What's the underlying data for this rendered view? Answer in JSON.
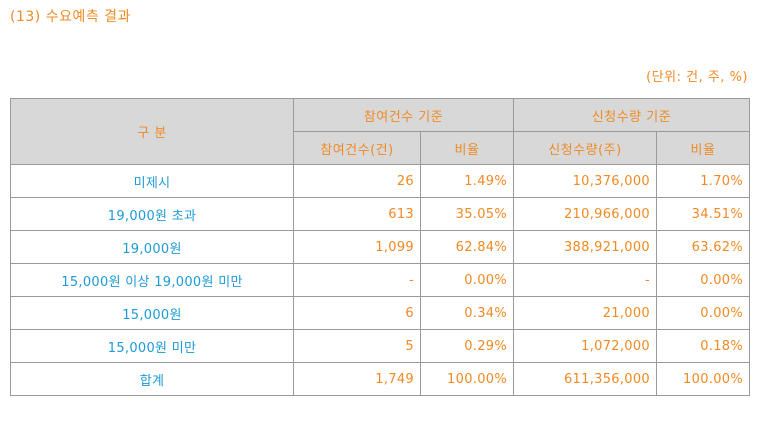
{
  "heading": "(13) 수요예측 결과",
  "unit_note": "(단위: 건, 주, %)",
  "table": {
    "header": {
      "category": "구 분",
      "group_count": "참여건수 기준",
      "group_quantity": "신청수량 기준",
      "count_col": "참여건수(건)",
      "count_ratio": "비율",
      "quantity_col": "신청수량(주)",
      "quantity_ratio": "비율"
    },
    "rows": [
      {
        "label": "미제시",
        "count": "26",
        "count_ratio": "1.49%",
        "quantity": "10,376,000",
        "quantity_ratio": "1.70%"
      },
      {
        "label": "19,000원 초과",
        "count": "613",
        "count_ratio": "35.05%",
        "quantity": "210,966,000",
        "quantity_ratio": "34.51%"
      },
      {
        "label": "19,000원",
        "count": "1,099",
        "count_ratio": "62.84%",
        "quantity": "388,921,000",
        "quantity_ratio": "63.62%"
      },
      {
        "label": "15,000원 이상 19,000원 미만",
        "count": "-",
        "count_ratio": "0.00%",
        "quantity": "-",
        "quantity_ratio": "0.00%"
      },
      {
        "label": "15,000원",
        "count": "6",
        "count_ratio": "0.34%",
        "quantity": "21,000",
        "quantity_ratio": "0.00%"
      },
      {
        "label": "15,000원 미만",
        "count": "5",
        "count_ratio": "0.29%",
        "quantity": "1,072,000",
        "quantity_ratio": "0.18%"
      },
      {
        "label": "합계",
        "count": "1,749",
        "count_ratio": "100.00%",
        "quantity": "611,356,000",
        "quantity_ratio": "100.00%"
      }
    ]
  },
  "colors": {
    "accent_orange": "#f08a24",
    "label_blue": "#1e9ad6",
    "header_gray": "#d8d8d8"
  }
}
